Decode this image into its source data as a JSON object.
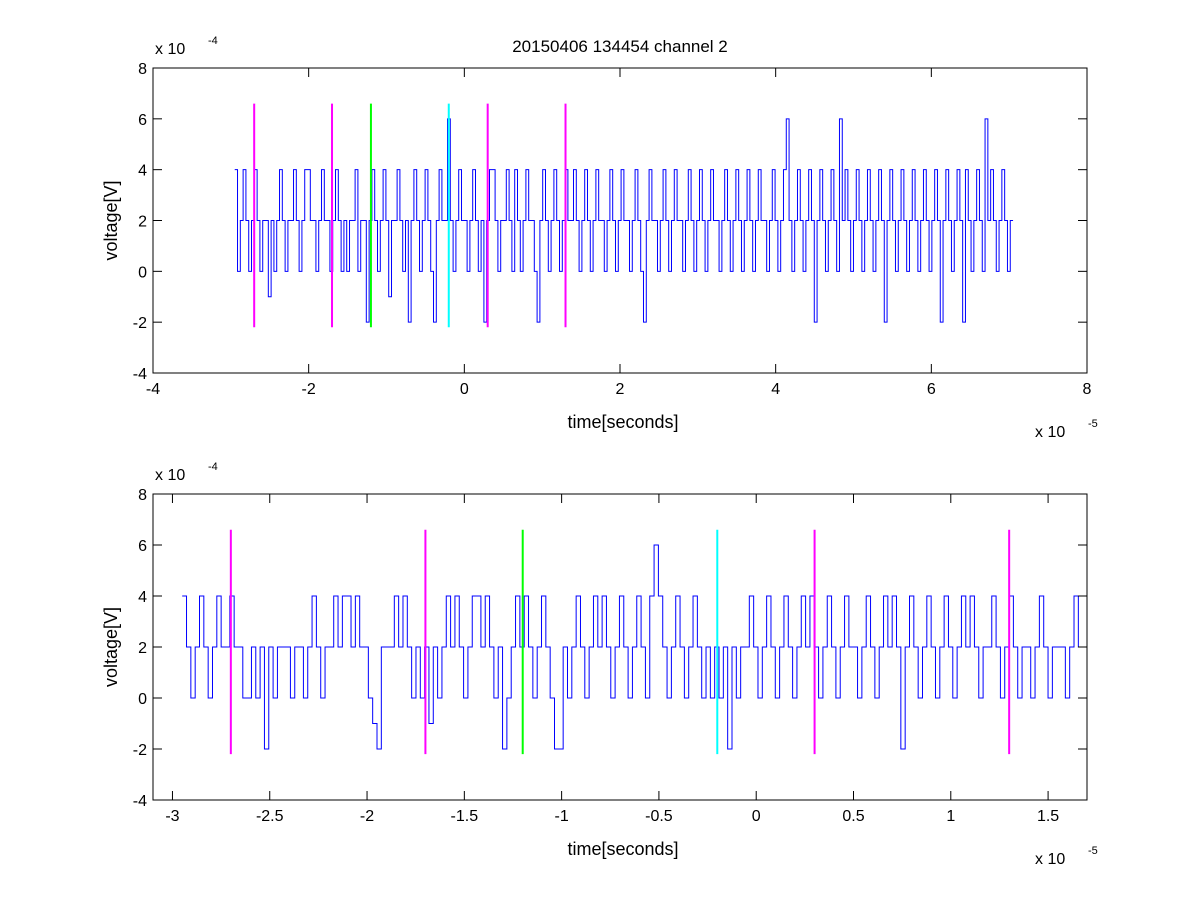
{
  "figure": {
    "title": "20150406 134454 channel 2"
  },
  "chart_data": [
    {
      "type": "line",
      "title": "20150406 134454 channel 2",
      "xlabel": "time[seconds]",
      "ylabel": "voltage[V]",
      "x_multiplier": "x 10",
      "x_exponent": "-5",
      "y_multiplier": "x 10",
      "y_exponent": "-4",
      "xlim": [
        -4,
        8
      ],
      "ylim": [
        -4,
        8
      ],
      "x_ticks": [
        -4,
        -2,
        0,
        2,
        4,
        6,
        8
      ],
      "x_tick_labels": [
        "-4",
        "-2",
        "0",
        "2",
        "4",
        "6",
        "8"
      ],
      "y_ticks": [
        -4,
        -2,
        0,
        2,
        4,
        6,
        8
      ],
      "y_tick_labels": [
        "-4",
        "-2",
        "0",
        "2",
        "4",
        "6",
        "8"
      ],
      "grid": false,
      "signal": {
        "color": "#0000ff",
        "x_start": -2.95,
        "x_end": 7.05,
        "values": [
          4,
          0,
          2,
          4,
          2,
          0,
          2,
          4,
          2,
          0,
          2,
          2,
          -1,
          2,
          0,
          2,
          4,
          2,
          0,
          2,
          2,
          4,
          2,
          0,
          2,
          4,
          4,
          2,
          2,
          0,
          2,
          4,
          2,
          2,
          0,
          2,
          4,
          2,
          0,
          2,
          0,
          2,
          2,
          4,
          0,
          2,
          2,
          -2,
          2,
          4,
          2,
          0,
          2,
          4,
          2,
          -1,
          2,
          2,
          4,
          2,
          0,
          2,
          -2,
          2,
          4,
          2,
          0,
          2,
          4,
          2,
          0,
          -2,
          2,
          4,
          2,
          2,
          6,
          2,
          0,
          2,
          4,
          2,
          2,
          0,
          2,
          4,
          2,
          0,
          2,
          -2,
          2,
          4,
          4,
          2,
          0,
          2,
          2,
          4,
          2,
          0,
          4,
          2,
          0,
          2,
          4,
          2,
          2,
          0,
          -2,
          2,
          4,
          2,
          0,
          2,
          4,
          2,
          0,
          2,
          4,
          2,
          2,
          4,
          2,
          0,
          2,
          4,
          2,
          0,
          2,
          4,
          2,
          2,
          0,
          2,
          4,
          2,
          0,
          2,
          4,
          2,
          2,
          0,
          2,
          4,
          2,
          0,
          -2,
          2,
          4,
          2,
          2,
          0,
          2,
          4,
          2,
          0,
          2,
          4,
          2,
          2,
          0,
          2,
          4,
          2,
          0,
          2,
          4,
          2,
          0,
          2,
          4,
          2,
          2,
          0,
          2,
          4,
          2,
          0,
          2,
          4,
          2,
          0,
          2,
          4,
          2,
          0,
          2,
          4,
          2,
          2,
          0,
          2,
          4,
          2,
          0,
          2,
          4,
          6,
          2,
          0,
          2,
          4,
          2,
          0,
          2,
          4,
          2,
          -2,
          2,
          4,
          2,
          0,
          2,
          4,
          2,
          0,
          6,
          2,
          4,
          2,
          0,
          2,
          4,
          2,
          0,
          2,
          4,
          2,
          0,
          2,
          4,
          2,
          -2,
          2,
          4,
          2,
          0,
          2,
          4,
          2,
          0,
          2,
          4,
          2,
          0,
          2,
          4,
          2,
          0,
          2,
          4,
          2,
          -2,
          2,
          4,
          2,
          0,
          2,
          4,
          2,
          -2,
          4,
          2,
          0,
          2,
          4,
          2,
          0,
          6,
          2,
          4,
          2,
          0,
          2,
          4,
          2,
          0,
          2
        ]
      },
      "markers": [
        {
          "x": -2.7,
          "color": "#ff00ff",
          "y_range": [
            -2.2,
            6.6
          ]
        },
        {
          "x": -1.7,
          "color": "#ff00ff",
          "y_range": [
            -2.2,
            6.6
          ]
        },
        {
          "x": -1.2,
          "color": "#00ff00",
          "y_range": [
            -2.2,
            6.6
          ]
        },
        {
          "x": -0.2,
          "color": "#00ffff",
          "y_range": [
            -2.2,
            6.6
          ]
        },
        {
          "x": 0.3,
          "color": "#ff00ff",
          "y_range": [
            -2.2,
            6.6
          ]
        },
        {
          "x": 1.3,
          "color": "#ff00ff",
          "y_range": [
            -2.2,
            6.6
          ]
        }
      ]
    },
    {
      "type": "line",
      "title": "",
      "xlabel": "time[seconds]",
      "ylabel": "voltage[V]",
      "x_multiplier": "x 10",
      "x_exponent": "-5",
      "y_multiplier": "x 10",
      "y_exponent": "-4",
      "xlim": [
        -3.1,
        1.7
      ],
      "ylim": [
        -4,
        8
      ],
      "x_ticks": [
        -3,
        -2.5,
        -2,
        -1.5,
        -1,
        -0.5,
        0,
        0.5,
        1,
        1.5
      ],
      "x_tick_labels": [
        "-3",
        "-2.5",
        "-2",
        "-1.5",
        "-1",
        "-0.5",
        "0",
        "0.5",
        "1",
        "1.5"
      ],
      "y_ticks": [
        -4,
        -2,
        0,
        2,
        4,
        6,
        8
      ],
      "y_tick_labels": [
        "-4",
        "-2",
        "0",
        "2",
        "4",
        "6",
        "8"
      ],
      "grid": false,
      "signal": {
        "color": "#0000ff",
        "x_start": -2.95,
        "x_end": 1.7,
        "values": [
          4,
          2,
          0,
          2,
          4,
          2,
          0,
          2,
          4,
          2,
          2,
          4,
          2,
          2,
          0,
          0,
          2,
          0,
          2,
          -2,
          2,
          0,
          2,
          2,
          2,
          0,
          2,
          2,
          0,
          2,
          4,
          2,
          0,
          2,
          2,
          4,
          2,
          4,
          4,
          2,
          4,
          2,
          2,
          0,
          -1,
          -2,
          2,
          2,
          2,
          4,
          2,
          4,
          2,
          0,
          2,
          0,
          2,
          -1,
          2,
          0,
          2,
          4,
          2,
          4,
          2,
          0,
          2,
          4,
          4,
          2,
          4,
          2,
          0,
          2,
          -2,
          0,
          2,
          4,
          2,
          4,
          2,
          0,
          2,
          4,
          2,
          0,
          -2,
          -2,
          2,
          0,
          2,
          4,
          2,
          0,
          2,
          4,
          2,
          4,
          2,
          0,
          2,
          4,
          2,
          0,
          2,
          4,
          2,
          0,
          4,
          6,
          4,
          2,
          0,
          2,
          4,
          2,
          0,
          2,
          4,
          2,
          0,
          2,
          0,
          2,
          0,
          2,
          -2,
          2,
          0,
          2,
          2,
          4,
          2,
          0,
          2,
          4,
          2,
          0,
          2,
          4,
          2,
          0,
          2,
          4,
          2,
          4,
          2,
          0,
          2,
          4,
          2,
          0,
          2,
          4,
          2,
          2,
          0,
          2,
          4,
          2,
          0,
          2,
          4,
          2,
          4,
          2,
          -2,
          2,
          4,
          2,
          0,
          2,
          4,
          2,
          0,
          2,
          4,
          2,
          0,
          2,
          4,
          2,
          4,
          2,
          0,
          2,
          2,
          4,
          2,
          0,
          2,
          4,
          2,
          0,
          2,
          2,
          0,
          2,
          4,
          2,
          0,
          2,
          2,
          2,
          0,
          2,
          4,
          2,
          2
        ]
      },
      "markers": [
        {
          "x": -2.7,
          "color": "#ff00ff",
          "y_range": [
            -2.2,
            6.6
          ]
        },
        {
          "x": -1.7,
          "color": "#ff00ff",
          "y_range": [
            -2.2,
            6.6
          ]
        },
        {
          "x": -1.2,
          "color": "#00ff00",
          "y_range": [
            -2.2,
            6.6
          ]
        },
        {
          "x": -0.2,
          "color": "#00ffff",
          "y_range": [
            -2.2,
            6.6
          ]
        },
        {
          "x": 0.3,
          "color": "#ff00ff",
          "y_range": [
            -2.2,
            6.6
          ]
        },
        {
          "x": 1.3,
          "color": "#ff00ff",
          "y_range": [
            -2.2,
            6.6
          ]
        }
      ]
    }
  ]
}
